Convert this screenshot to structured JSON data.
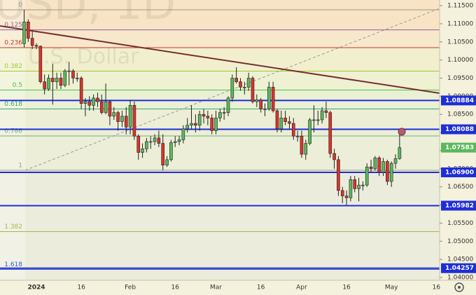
{
  "chart_data": {
    "type": "candlestick",
    "watermark": {
      "symbol": "USD, 1D",
      "description": "U.S. Dollar"
    },
    "up_color": "#5cb85c",
    "down_color": "#d9342b",
    "categories": [
      null,
      null,
      null,
      "2024",
      null,
      null,
      null,
      null,
      null,
      null,
      null,
      null,
      null,
      null,
      "16",
      null,
      null,
      null,
      null,
      null,
      null,
      null,
      null,
      null,
      null,
      null,
      "Feb",
      null,
      null,
      null,
      null,
      null,
      null,
      null,
      null,
      null,
      null,
      "16",
      null,
      null,
      null,
      null,
      null,
      null,
      null,
      null,
      null,
      "Mar",
      null,
      null,
      null,
      null,
      null,
      null,
      null,
      null,
      null,
      null,
      "16",
      null,
      null,
      null,
      null,
      null,
      null,
      null,
      null,
      null,
      "Apr",
      null,
      null,
      null,
      null,
      null,
      null,
      null,
      null,
      null,
      null,
      "16",
      null,
      null,
      null,
      null,
      null,
      null,
      null,
      null,
      null,
      null,
      "May",
      null,
      null,
      null,
      null,
      null,
      null,
      null,
      null,
      null,
      null,
      "16"
    ],
    "open": [
      1.1045,
      1.1105,
      1.106,
      1.104,
      1.1038,
      1.094,
      1.092,
      1.095,
      1.094,
      1.095,
      1.093,
      1.097,
      1.097,
      1.095,
      1.095,
      1.088,
      1.0885,
      1.0875,
      1.0895,
      1.0885,
      1.0855,
      1.0885,
      1.0845,
      1.0855,
      1.083,
      1.0845,
      1.0815,
      1.0875,
      1.079,
      1.0745,
      1.0755,
      1.0775,
      1.0775,
      1.0785,
      1.077,
      1.071,
      1.0725,
      1.0772,
      1.0775,
      1.078,
      1.081,
      1.082,
      1.0825,
      1.082,
      1.085,
      1.0845,
      1.084,
      1.0805,
      1.084,
      1.0855,
      1.0855,
      1.0895,
      1.095,
      1.094,
      1.0925,
      1.0925,
      1.095,
      1.0885,
      1.089,
      1.0865,
      1.0865,
      1.0925,
      1.086,
      1.081,
      1.084,
      1.083,
      1.0825,
      1.079,
      1.079,
      1.074,
      1.077,
      1.0835,
      1.0835,
      1.0835,
      1.086,
      1.0855,
      1.0742,
      1.0725,
      1.064,
      1.0625,
      1.062,
      1.067,
      1.0645,
      1.0655,
      1.0655,
      1.0705,
      1.07,
      1.073,
      1.069,
      1.072,
      1.0665,
      1.0715,
      1.0728,
      null,
      null,
      null,
      null,
      null,
      null,
      null,
      null,
      null
    ],
    "close": [
      1.1105,
      1.106,
      1.104,
      1.1038,
      1.094,
      1.092,
      1.095,
      1.094,
      1.095,
      1.093,
      1.097,
      1.097,
      1.095,
      1.095,
      1.088,
      1.0885,
      1.0875,
      1.0895,
      1.0885,
      1.0855,
      1.0885,
      1.0845,
      1.0855,
      1.083,
      1.0845,
      1.0815,
      1.0875,
      1.079,
      1.0745,
      1.0755,
      1.0775,
      1.0775,
      1.0785,
      1.077,
      1.071,
      1.0725,
      1.0772,
      1.0775,
      1.078,
      1.081,
      1.082,
      1.0825,
      1.082,
      1.085,
      1.0845,
      1.084,
      1.0805,
      1.084,
      1.0855,
      1.0855,
      1.0895,
      1.095,
      1.094,
      1.0925,
      1.0925,
      1.095,
      1.0885,
      1.089,
      1.0865,
      1.0865,
      1.0925,
      1.086,
      1.081,
      1.084,
      1.083,
      1.0825,
      1.079,
      1.079,
      1.074,
      1.077,
      1.0835,
      1.0835,
      1.0835,
      1.086,
      1.0855,
      1.0742,
      1.0725,
      1.064,
      1.0625,
      1.062,
      1.067,
      1.0645,
      1.0655,
      1.0655,
      1.0705,
      1.07,
      1.073,
      1.069,
      1.072,
      1.0665,
      1.0715,
      1.0728,
      1.07583,
      null,
      null,
      null,
      null,
      null,
      null,
      null,
      null,
      null
    ],
    "high": [
      1.1139,
      1.1112,
      1.108,
      1.1046,
      1.104,
      1.096,
      1.096,
      1.099,
      1.0965,
      1.0965,
      1.0975,
      1.0995,
      1.0975,
      1.0965,
      1.0955,
      1.0895,
      1.09,
      1.0905,
      1.091,
      1.0905,
      1.0935,
      1.089,
      1.087,
      1.086,
      1.086,
      1.087,
      1.089,
      1.0885,
      1.0795,
      1.077,
      1.0785,
      1.079,
      1.0795,
      1.0805,
      1.0795,
      1.0735,
      1.078,
      1.079,
      1.079,
      1.082,
      1.084,
      1.0875,
      1.085,
      1.086,
      1.0865,
      1.086,
      1.085,
      1.086,
      1.0865,
      1.087,
      1.09,
      1.096,
      1.098,
      1.095,
      1.094,
      1.0965,
      1.0955,
      1.0905,
      1.0895,
      1.088,
      1.094,
      1.094,
      1.0865,
      1.086,
      1.086,
      1.0845,
      1.084,
      1.0805,
      1.0805,
      1.078,
      1.084,
      1.0875,
      1.086,
      1.087,
      1.0885,
      1.086,
      1.0755,
      1.0735,
      1.065,
      1.064,
      1.068,
      1.068,
      1.0675,
      1.0665,
      1.0715,
      1.0725,
      1.0735,
      1.0735,
      1.073,
      1.0725,
      1.072,
      1.074,
      1.081,
      null,
      null,
      null,
      null,
      null,
      null,
      null,
      null,
      null
    ],
    "low": [
      1.1035,
      1.105,
      1.103,
      1.103,
      1.0935,
      1.0905,
      1.0915,
      1.0877,
      1.092,
      1.092,
      1.0925,
      1.093,
      1.0935,
      1.094,
      1.0865,
      1.0845,
      1.086,
      1.086,
      1.087,
      1.085,
      1.085,
      1.082,
      1.0835,
      1.0805,
      1.0815,
      1.0795,
      1.0795,
      1.078,
      1.0725,
      1.073,
      1.0745,
      1.0755,
      1.0765,
      1.076,
      1.0695,
      1.0705,
      1.072,
      1.076,
      1.0765,
      1.077,
      1.08,
      1.081,
      1.08,
      1.0805,
      1.0825,
      1.082,
      1.0795,
      1.0795,
      1.083,
      1.0835,
      1.0845,
      1.0885,
      1.0935,
      1.0915,
      1.0905,
      1.0915,
      1.088,
      1.087,
      1.0855,
      1.0845,
      1.086,
      1.0855,
      1.08,
      1.08,
      1.082,
      1.081,
      1.078,
      1.0775,
      1.073,
      1.0725,
      1.0765,
      1.08,
      1.082,
      1.0825,
      1.084,
      1.073,
      1.07,
      1.0625,
      1.0605,
      1.06,
      1.061,
      1.0635,
      1.061,
      1.064,
      1.065,
      1.069,
      1.0695,
      1.068,
      1.068,
      1.0655,
      1.065,
      1.07,
      1.0725,
      null,
      null,
      null,
      null,
      null,
      null,
      null,
      null,
      null
    ],
    "ylim": [
      1.03923,
      1.11655
    ],
    "yticks": [
      {
        "value": 1.04,
        "label": "1.04000"
      },
      {
        "value": 1.045,
        "label": "1.04500"
      },
      {
        "value": 1.05,
        "label": "1.05000"
      },
      {
        "value": 1.055,
        "label": "1.05500"
      },
      {
        "value": 1.06,
        "label": "1.06000"
      },
      {
        "value": 1.065,
        "label": "1.06500"
      },
      {
        "value": 1.07,
        "label": "1.07000"
      },
      {
        "value": 1.075,
        "label": "1.07500"
      },
      {
        "value": 1.08,
        "label": "1.08000"
      },
      {
        "value": 1.085,
        "label": "1.08500"
      },
      {
        "value": 1.09,
        "label": "1.09000"
      },
      {
        "value": 1.095,
        "label": "1.09500"
      },
      {
        "value": 1.1,
        "label": "1.10000"
      },
      {
        "value": 1.105,
        "label": "1.10500"
      },
      {
        "value": 1.11,
        "label": "1.11000"
      },
      {
        "value": 1.115,
        "label": "1.11500"
      }
    ],
    "fib": {
      "start": 1.11384,
      "end": 1.06958,
      "levels": [
        {
          "ratio": 0,
          "color": "#9a9a8a",
          "band_color": "#f8e4c4"
        },
        {
          "ratio": 0.125,
          "color": "#8e5fa8",
          "band_color": "#f7e8cb"
        },
        {
          "ratio": 0.236,
          "color": "#c0392b",
          "band_color": "#f2efcf"
        },
        {
          "ratio": 0.382,
          "color": "#9ccc2e",
          "band_color": "#eef1d2"
        },
        {
          "ratio": 0.5,
          "color": "#4cc24c",
          "band_color": "#eaf0d4"
        },
        {
          "ratio": 0.618,
          "color": "#3aa76d",
          "band_color": "#eceed6"
        },
        {
          "ratio": 0.786,
          "color": "#6fb07a",
          "band_color": "#eceed8"
        },
        {
          "ratio": 1,
          "color": "#9a9a8a",
          "band_color": "#ececdc"
        },
        {
          "ratio": 1.382,
          "color": "#a9b54a",
          "band_color": "#ececdc"
        },
        {
          "ratio": 1.618,
          "color": "#3a56c8",
          "band_color": "#ececdc"
        }
      ]
    },
    "levels": [
      {
        "value": 1.08884,
        "label": "1.08884"
      },
      {
        "value": 1.08088,
        "label": "1.08088"
      },
      {
        "value": 1.069,
        "label": "1.06900"
      },
      {
        "value": 1.05982,
        "label": "1.05982"
      },
      {
        "value": 1.04257,
        "label": "1.04257"
      }
    ],
    "level_color": "#1e2fd6",
    "last_price": {
      "value": 1.07583,
      "label": "1.07583"
    }
  }
}
